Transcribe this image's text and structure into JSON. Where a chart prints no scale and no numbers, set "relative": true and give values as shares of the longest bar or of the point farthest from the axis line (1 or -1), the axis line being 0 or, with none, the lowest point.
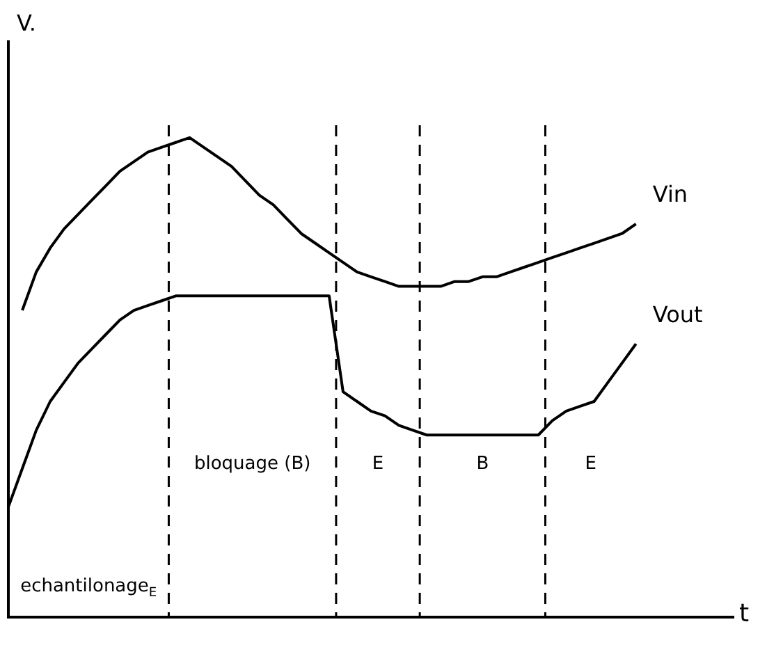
{
  "chart_data": {
    "type": "line",
    "relative": true,
    "xlabel": "t",
    "ylabel": "V.",
    "categories": [
      null,
      null,
      null,
      null,
      null,
      null,
      null,
      null,
      null,
      null,
      null,
      null,
      null,
      null,
      null,
      null,
      null,
      null,
      null,
      null,
      null,
      null,
      null,
      null,
      null,
      null,
      null,
      null,
      null,
      null,
      null,
      null,
      null,
      null,
      null,
      null,
      null,
      null,
      null,
      null,
      null,
      null,
      null,
      null,
      null,
      null,
      null,
      null,
      null,
      null,
      null,
      null,
      null
    ],
    "grid": false,
    "legend": false,
    "marker": "none",
    "line_style": "solid",
    "series": [
      {
        "name": "Vin",
        "color": "#000000",
        "values": [
          null,
          0.64,
          0.72,
          0.77,
          0.81,
          0.84,
          0.87,
          0.9,
          0.93,
          0.95,
          0.97,
          0.98,
          0.99,
          1,
          0.98,
          0.96,
          0.94,
          0.91,
          0.88,
          0.86,
          0.83,
          0.8,
          0.78,
          0.76,
          0.74,
          0.72,
          0.71,
          0.7,
          0.69,
          0.69,
          0.69,
          0.69,
          0.7,
          0.7,
          0.71,
          0.71,
          0.72,
          0.73,
          0.74,
          0.75,
          0.76,
          0.77,
          0.78,
          0.79,
          0.8,
          0.82,
          null,
          null,
          null,
          null,
          null,
          null,
          null
        ]
      },
      {
        "name": "Vout",
        "color": "#000000",
        "values": [
          0.23,
          0.31,
          0.39,
          0.45,
          0.49,
          0.53,
          0.56,
          0.59,
          0.62,
          0.64,
          0.65,
          0.66,
          0.67,
          0.67,
          0.67,
          0.67,
          0.67,
          0.67,
          0.67,
          0.67,
          0.67,
          0.67,
          0.67,
          0.67,
          0.47,
          0.45,
          0.43,
          0.42,
          0.4,
          0.39,
          0.38,
          0.38,
          0.38,
          0.38,
          0.38,
          0.38,
          0.38,
          0.38,
          0.38,
          0.41,
          0.43,
          0.44,
          0.45,
          0.49,
          0.53,
          0.57,
          null,
          null,
          null,
          null,
          null,
          null,
          null
        ]
      }
    ],
    "annotations": [
      "echantilonage$_{E}$",
      "bloquage (B)",
      "E",
      "B",
      "E"
    ]
  }
}
